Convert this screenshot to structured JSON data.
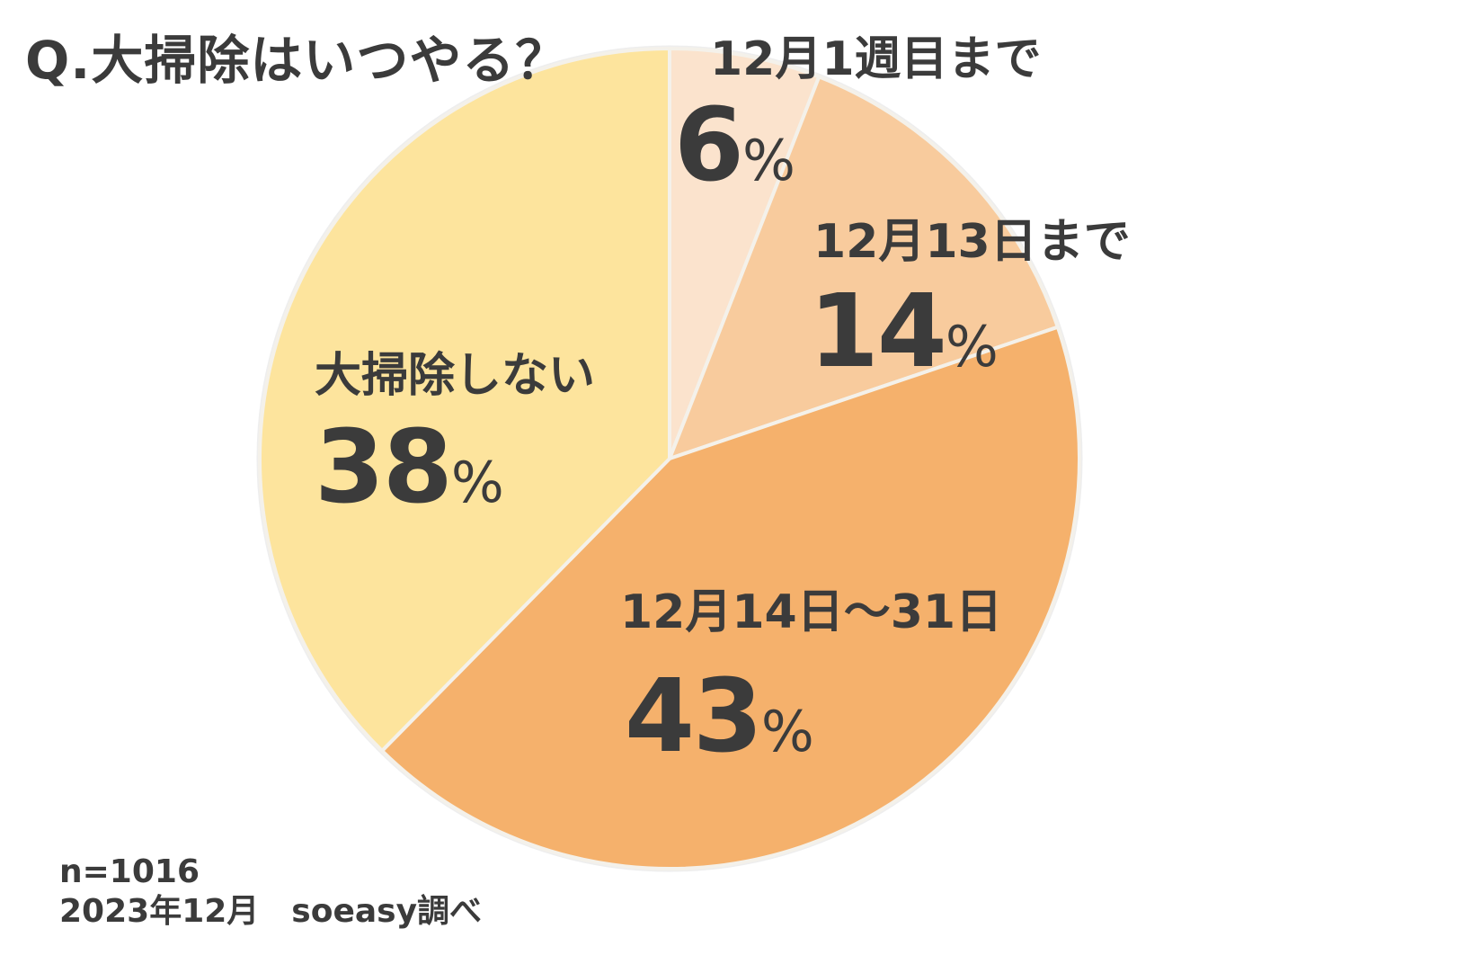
{
  "title": "Q.大掃除はいつやる？",
  "chart_data": {
    "type": "pie",
    "start_angle_deg": 0,
    "direction": "clockwise",
    "slices": [
      {
        "label": "12月1週目まで",
        "value": 6,
        "value_text": "6",
        "unit": "%",
        "color": "#fbe3cd"
      },
      {
        "label": "12月13日まで",
        "value": 14,
        "value_text": "14",
        "unit": "%",
        "color": "#f8cb9d"
      },
      {
        "label": "12月14日〜31日",
        "value": 43,
        "value_text": "43",
        "unit": "%",
        "color": "#f5b16c"
      },
      {
        "label": "大掃除しない",
        "value": 38,
        "value_text": "38",
        "unit": "%",
        "color": "#fde49d"
      }
    ]
  },
  "footer": {
    "sample": "n=1016",
    "source": "2023年12月　soeasy調べ"
  }
}
